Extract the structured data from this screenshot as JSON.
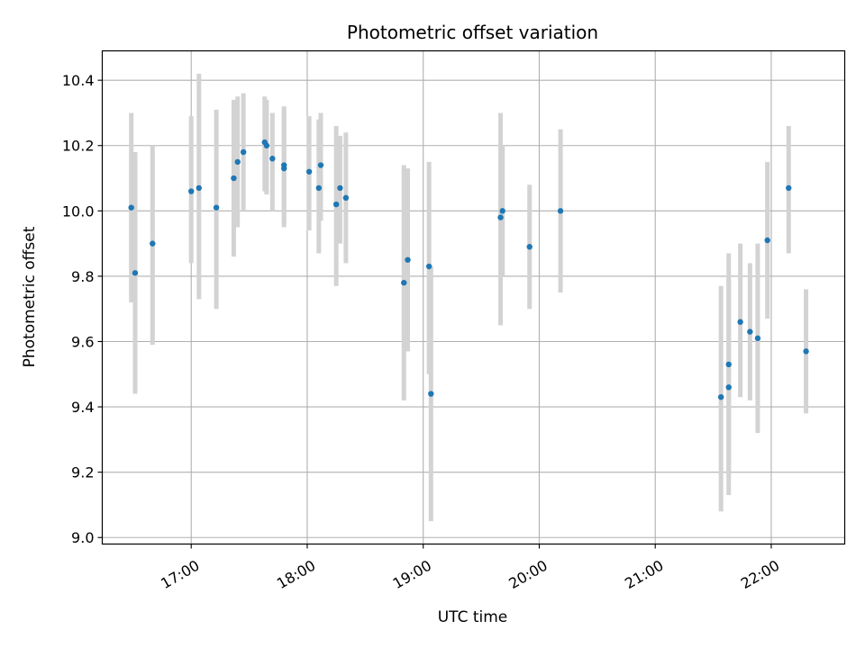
{
  "chart_data": {
    "type": "scatter",
    "title": "Photometric offset variation",
    "xlabel": "UTC time",
    "ylabel": "Photometric offset",
    "xlim": [
      "16:14",
      "22:38"
    ],
    "ylim": [
      8.98,
      10.49
    ],
    "x_ticks": [
      "17:00",
      "18:00",
      "19:00",
      "20:00",
      "21:00",
      "22:00"
    ],
    "y_ticks": [
      "9.0",
      "9.2",
      "9.4",
      "9.6",
      "9.8",
      "10.0",
      "10.2",
      "10.4"
    ],
    "grid": true,
    "series_color": "#1f77b4",
    "errorbar_color": "#d3d3d3",
    "points": [
      {
        "t": "16:29",
        "y": 10.01,
        "lo": 9.72,
        "hi": 10.3
      },
      {
        "t": "16:31",
        "y": 9.81,
        "lo": 9.44,
        "hi": 10.18
      },
      {
        "t": "16:40",
        "y": 9.9,
        "lo": 9.59,
        "hi": 10.2
      },
      {
        "t": "17:00",
        "y": 10.06,
        "lo": 9.84,
        "hi": 10.29
      },
      {
        "t": "17:04",
        "y": 10.07,
        "lo": 9.73,
        "hi": 10.42
      },
      {
        "t": "17:13",
        "y": 10.01,
        "lo": 9.7,
        "hi": 10.31
      },
      {
        "t": "17:22",
        "y": 10.1,
        "lo": 9.86,
        "hi": 10.34
      },
      {
        "t": "17:24",
        "y": 10.15,
        "lo": 9.95,
        "hi": 10.35
      },
      {
        "t": "17:27",
        "y": 10.18,
        "lo": 10.0,
        "hi": 10.36
      },
      {
        "t": "17:38",
        "y": 10.21,
        "lo": 10.06,
        "hi": 10.35
      },
      {
        "t": "17:39",
        "y": 10.2,
        "lo": 10.05,
        "hi": 10.34
      },
      {
        "t": "17:42",
        "y": 10.16,
        "lo": 10.0,
        "hi": 10.3
      },
      {
        "t": "17:48",
        "y": 10.14,
        "lo": 9.96,
        "hi": 10.32
      },
      {
        "t": "17:48",
        "y": 10.13,
        "lo": 9.95,
        "hi": 10.31
      },
      {
        "t": "18:01",
        "y": 10.12,
        "lo": 9.94,
        "hi": 10.29
      },
      {
        "t": "18:06",
        "y": 10.07,
        "lo": 9.87,
        "hi": 10.28
      },
      {
        "t": "18:07",
        "y": 10.14,
        "lo": 9.97,
        "hi": 10.3
      },
      {
        "t": "18:15",
        "y": 10.02,
        "lo": 9.77,
        "hi": 10.26
      },
      {
        "t": "18:17",
        "y": 10.07,
        "lo": 9.9,
        "hi": 10.23
      },
      {
        "t": "18:20",
        "y": 10.04,
        "lo": 9.84,
        "hi": 10.24
      },
      {
        "t": "18:50",
        "y": 9.78,
        "lo": 9.42,
        "hi": 10.14
      },
      {
        "t": "18:52",
        "y": 9.85,
        "lo": 9.57,
        "hi": 10.13
      },
      {
        "t": "19:03",
        "y": 9.83,
        "lo": 9.5,
        "hi": 10.15
      },
      {
        "t": "19:04",
        "y": 9.44,
        "lo": 9.05,
        "hi": 9.83
      },
      {
        "t": "19:40",
        "y": 9.98,
        "lo": 9.65,
        "hi": 10.3
      },
      {
        "t": "19:41",
        "y": 10.0,
        "lo": 9.8,
        "hi": 10.2
      },
      {
        "t": "19:55",
        "y": 9.89,
        "lo": 9.7,
        "hi": 10.08
      },
      {
        "t": "20:11",
        "y": 10.0,
        "lo": 9.75,
        "hi": 10.25
      },
      {
        "t": "21:34",
        "y": 9.43,
        "lo": 9.08,
        "hi": 9.77
      },
      {
        "t": "21:38",
        "y": 9.53,
        "lo": 9.19,
        "hi": 9.87
      },
      {
        "t": "21:38",
        "y": 9.46,
        "lo": 9.13,
        "hi": 9.79
      },
      {
        "t": "21:44",
        "y": 9.66,
        "lo": 9.43,
        "hi": 9.9
      },
      {
        "t": "21:49",
        "y": 9.63,
        "lo": 9.42,
        "hi": 9.84
      },
      {
        "t": "21:53",
        "y": 9.61,
        "lo": 9.32,
        "hi": 9.9
      },
      {
        "t": "21:58",
        "y": 9.91,
        "lo": 9.67,
        "hi": 10.15
      },
      {
        "t": "22:09",
        "y": 10.07,
        "lo": 9.87,
        "hi": 10.26
      },
      {
        "t": "22:18",
        "y": 9.57,
        "lo": 9.38,
        "hi": 9.76
      }
    ]
  }
}
